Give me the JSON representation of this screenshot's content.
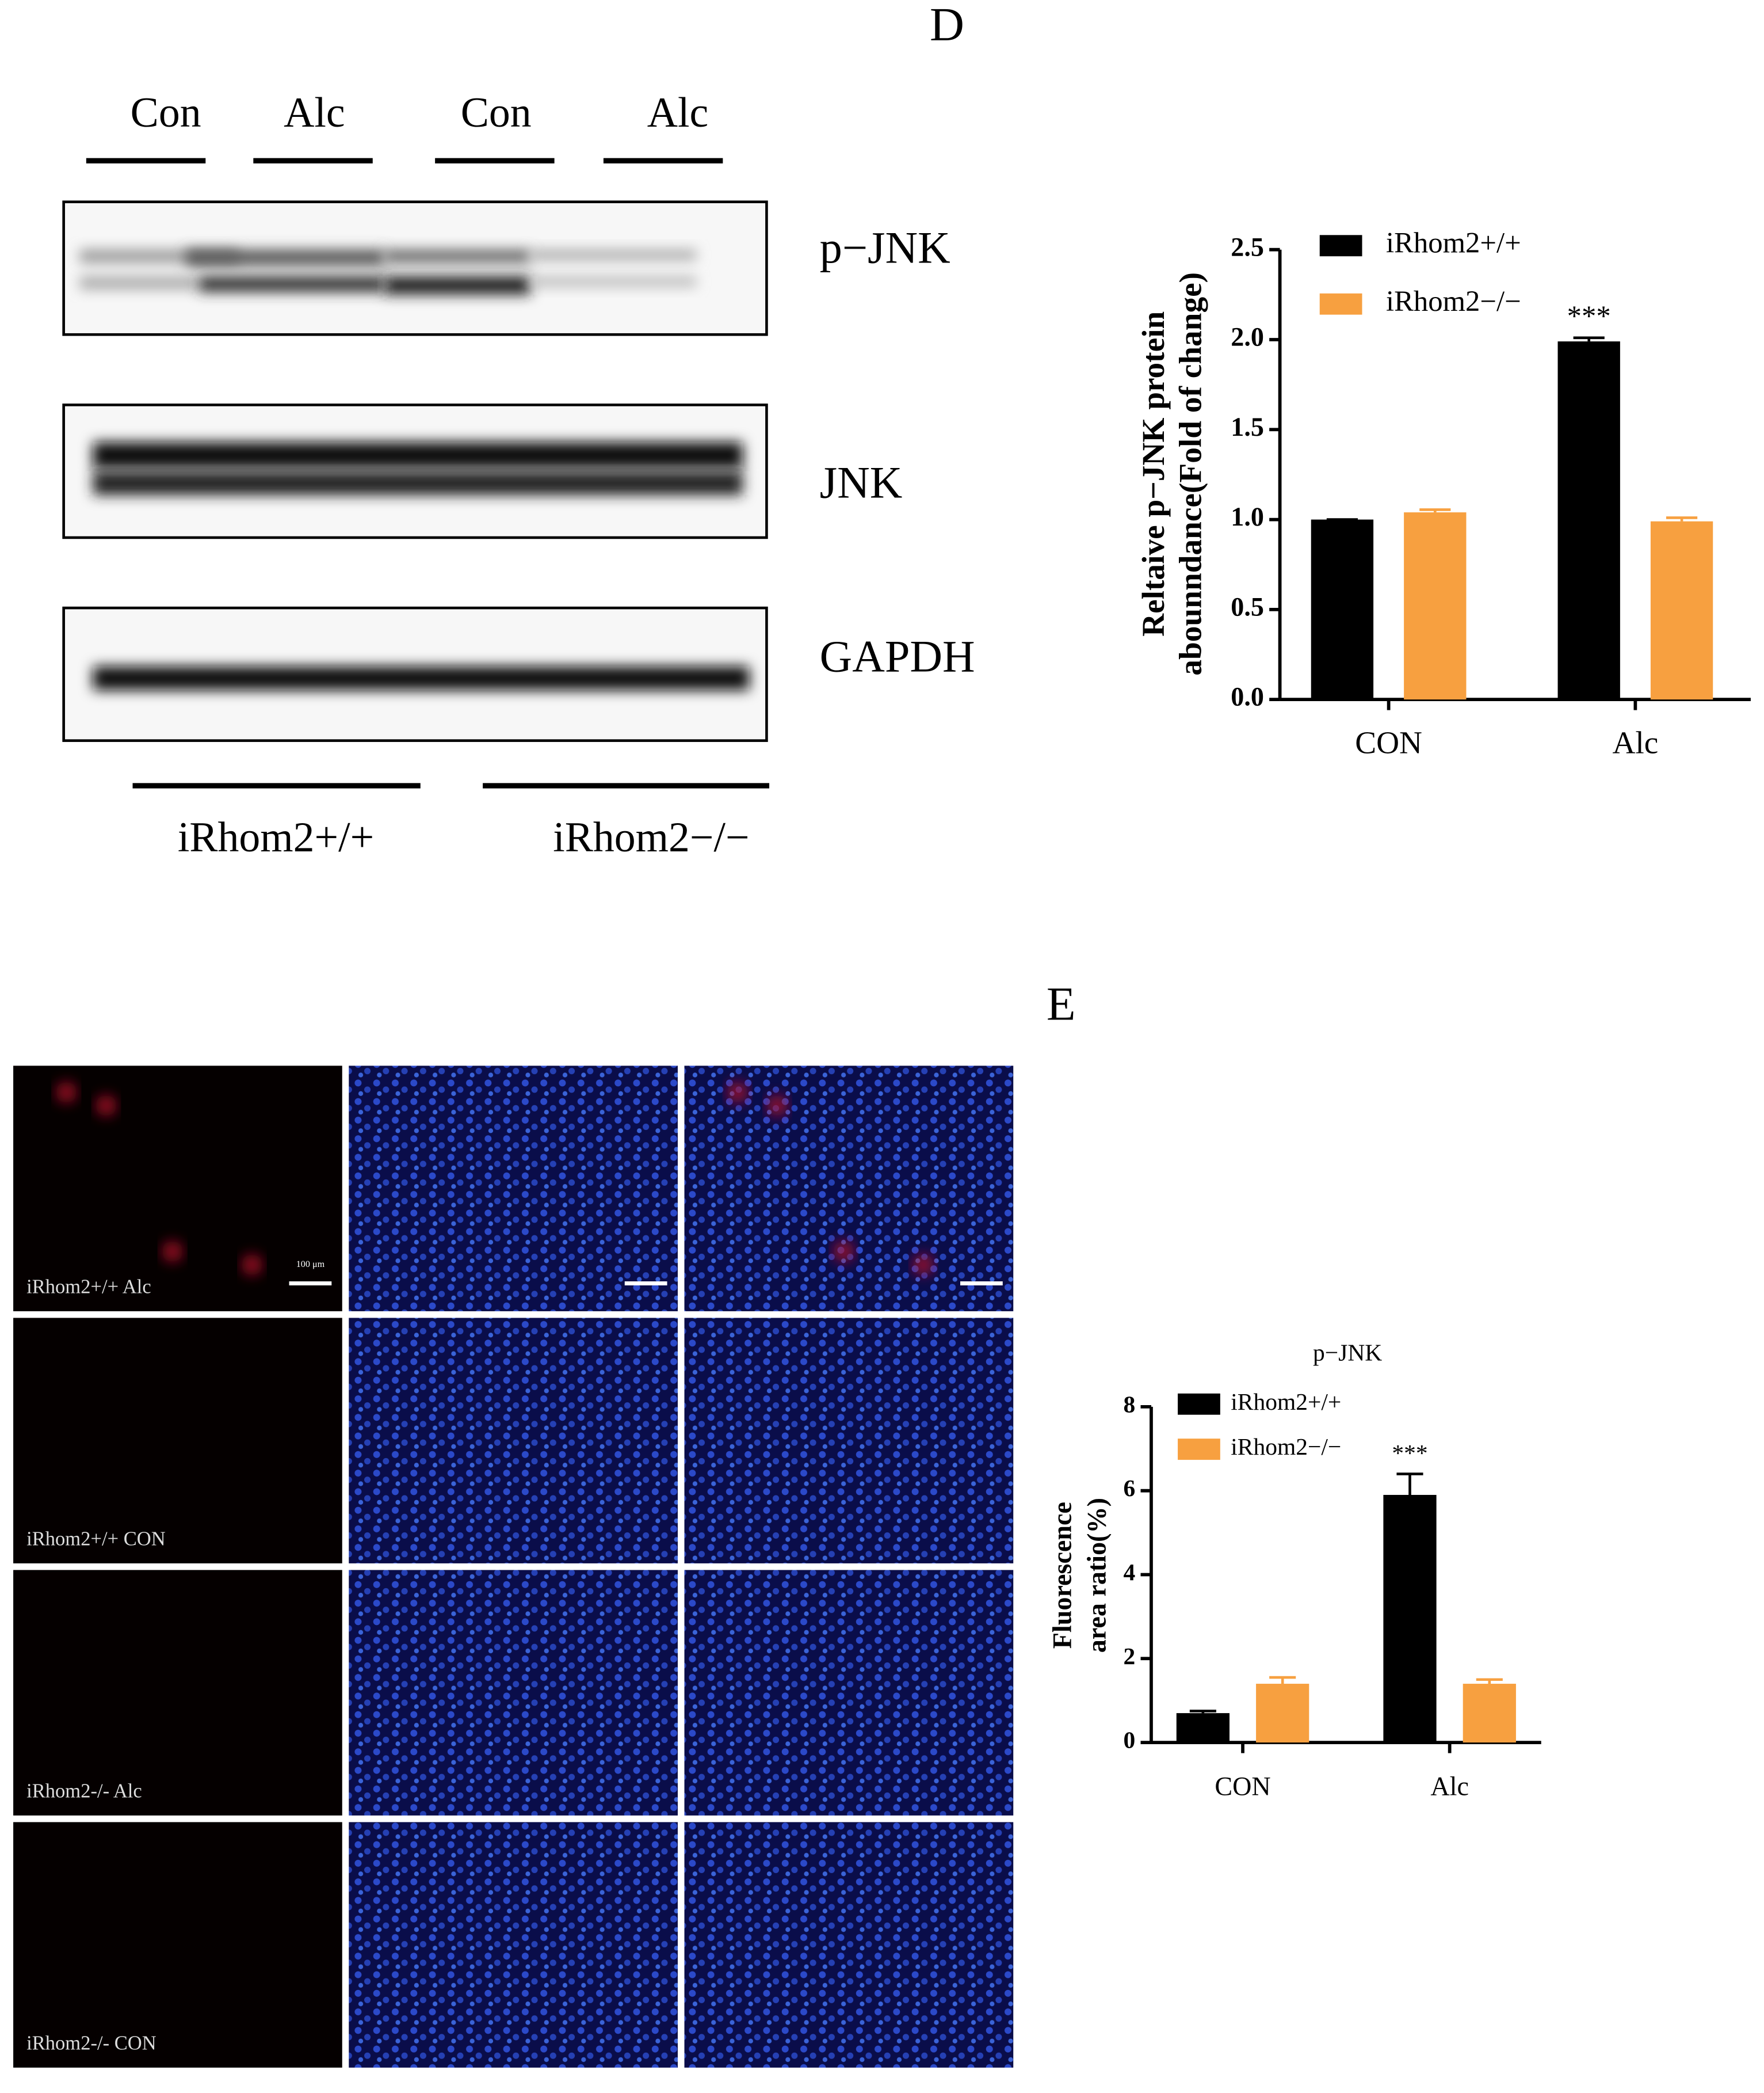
{
  "panel_d": {
    "label": "D",
    "lanes": [
      "Con",
      "Alc",
      "Con",
      "Alc"
    ],
    "blots": [
      "p−JNK",
      "JNK",
      "GAPDH"
    ],
    "groups": [
      "iRhom2+/+",
      "iRhom2−/−"
    ]
  },
  "panel_e": {
    "label": "E",
    "images": [
      "iRhom2+/+ Alc",
      "iRhom2+/+ CON",
      "iRhom2-/- Alc",
      "iRhom2-/- CON"
    ],
    "scale_bar": "100 μm"
  },
  "chart_data": [
    {
      "type": "bar",
      "ylabel": [
        "Reltaive p−JNK protein",
        "abounndance(Fold of change)"
      ],
      "categories": [
        "CON",
        "Alc"
      ],
      "series": [
        {
          "name": "iRhom2+/+",
          "color": "#000000",
          "values": [
            1.0,
            1.99
          ],
          "errors": [
            0,
            0.02
          ]
        },
        {
          "name": "iRhom2−/−",
          "color": "#f7a040",
          "values": [
            1.04,
            0.99
          ],
          "errors": [
            0.015,
            0.02
          ]
        }
      ],
      "ylim": [
        0,
        2.5
      ],
      "yticks": [
        {
          "value": 0,
          "label": "0.0"
        },
        {
          "value": 0.5,
          "label": "0.5"
        },
        {
          "value": 1,
          "label": "1.0"
        },
        {
          "value": 1.5,
          "label": "1.5"
        },
        {
          "value": 2,
          "label": "2.0"
        },
        {
          "value": 2.5,
          "label": "2.5"
        }
      ],
      "annotations": [
        "***"
      ]
    },
    {
      "type": "bar",
      "title": "p−JNK",
      "ylabel": [
        "Fluorescence",
        "area ratio(%)"
      ],
      "categories": [
        "CON",
        "Alc"
      ],
      "series": [
        {
          "name": "iRhom2+/+",
          "color": "#000000",
          "values": [
            0.7,
            5.9
          ],
          "errors": [
            0.05,
            0.5
          ]
        },
        {
          "name": "iRhom2−/−",
          "color": "#f7a040",
          "values": [
            1.4,
            1.4
          ],
          "errors": [
            0.15,
            0.1
          ]
        }
      ],
      "ylim": [
        0,
        8
      ],
      "yticks": [
        0,
        2,
        4,
        6,
        8
      ],
      "annotations": [
        "***"
      ]
    }
  ]
}
